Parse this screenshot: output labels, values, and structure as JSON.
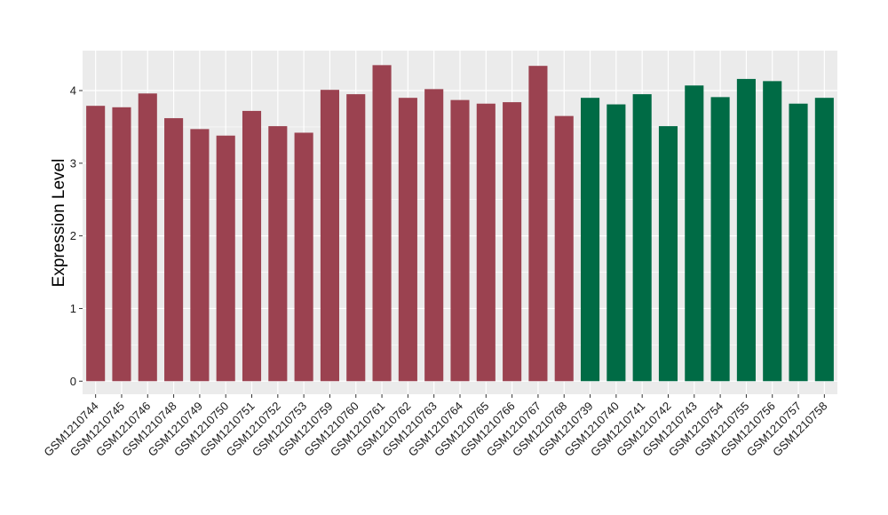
{
  "chart_data": {
    "type": "bar",
    "title": "",
    "xlabel": "",
    "ylabel": "Expression Level",
    "ylim": [
      -0.18,
      4.55
    ],
    "yticks": [
      0,
      1,
      2,
      3,
      4
    ],
    "grid": true,
    "panel_background": "#ebebeb",
    "gridline_color": "#ffffff",
    "categories": [
      "GSM1210744",
      "GSM1210745",
      "GSM1210746",
      "GSM1210748",
      "GSM1210749",
      "GSM1210750",
      "GSM1210751",
      "GSM1210752",
      "GSM1210753",
      "GSM1210759",
      "GSM1210760",
      "GSM1210761",
      "GSM1210762",
      "GSM1210763",
      "GSM1210764",
      "GSM1210765",
      "GSM1210766",
      "GSM1210767",
      "GSM1210768",
      "GSM1210739",
      "GSM1210740",
      "GSM1210741",
      "GSM1210742",
      "GSM1210743",
      "GSM1210754",
      "GSM1210755",
      "GSM1210756",
      "GSM1210757",
      "GSM1210758"
    ],
    "values": [
      3.79,
      3.77,
      3.96,
      3.62,
      3.47,
      3.38,
      3.72,
      3.51,
      3.42,
      4.01,
      3.95,
      4.35,
      3.9,
      4.02,
      3.87,
      3.82,
      3.84,
      4.34,
      3.65,
      3.9,
      3.81,
      3.95,
      3.51,
      4.07,
      3.91,
      4.16,
      4.13,
      3.82,
      3.9
    ],
    "group_colors": [
      "#9b4250",
      "#006b45"
    ],
    "bar_groups": [
      0,
      0,
      0,
      0,
      0,
      0,
      0,
      0,
      0,
      0,
      0,
      0,
      0,
      0,
      0,
      0,
      0,
      0,
      0,
      1,
      1,
      1,
      1,
      1,
      1,
      1,
      1,
      1,
      1
    ]
  }
}
